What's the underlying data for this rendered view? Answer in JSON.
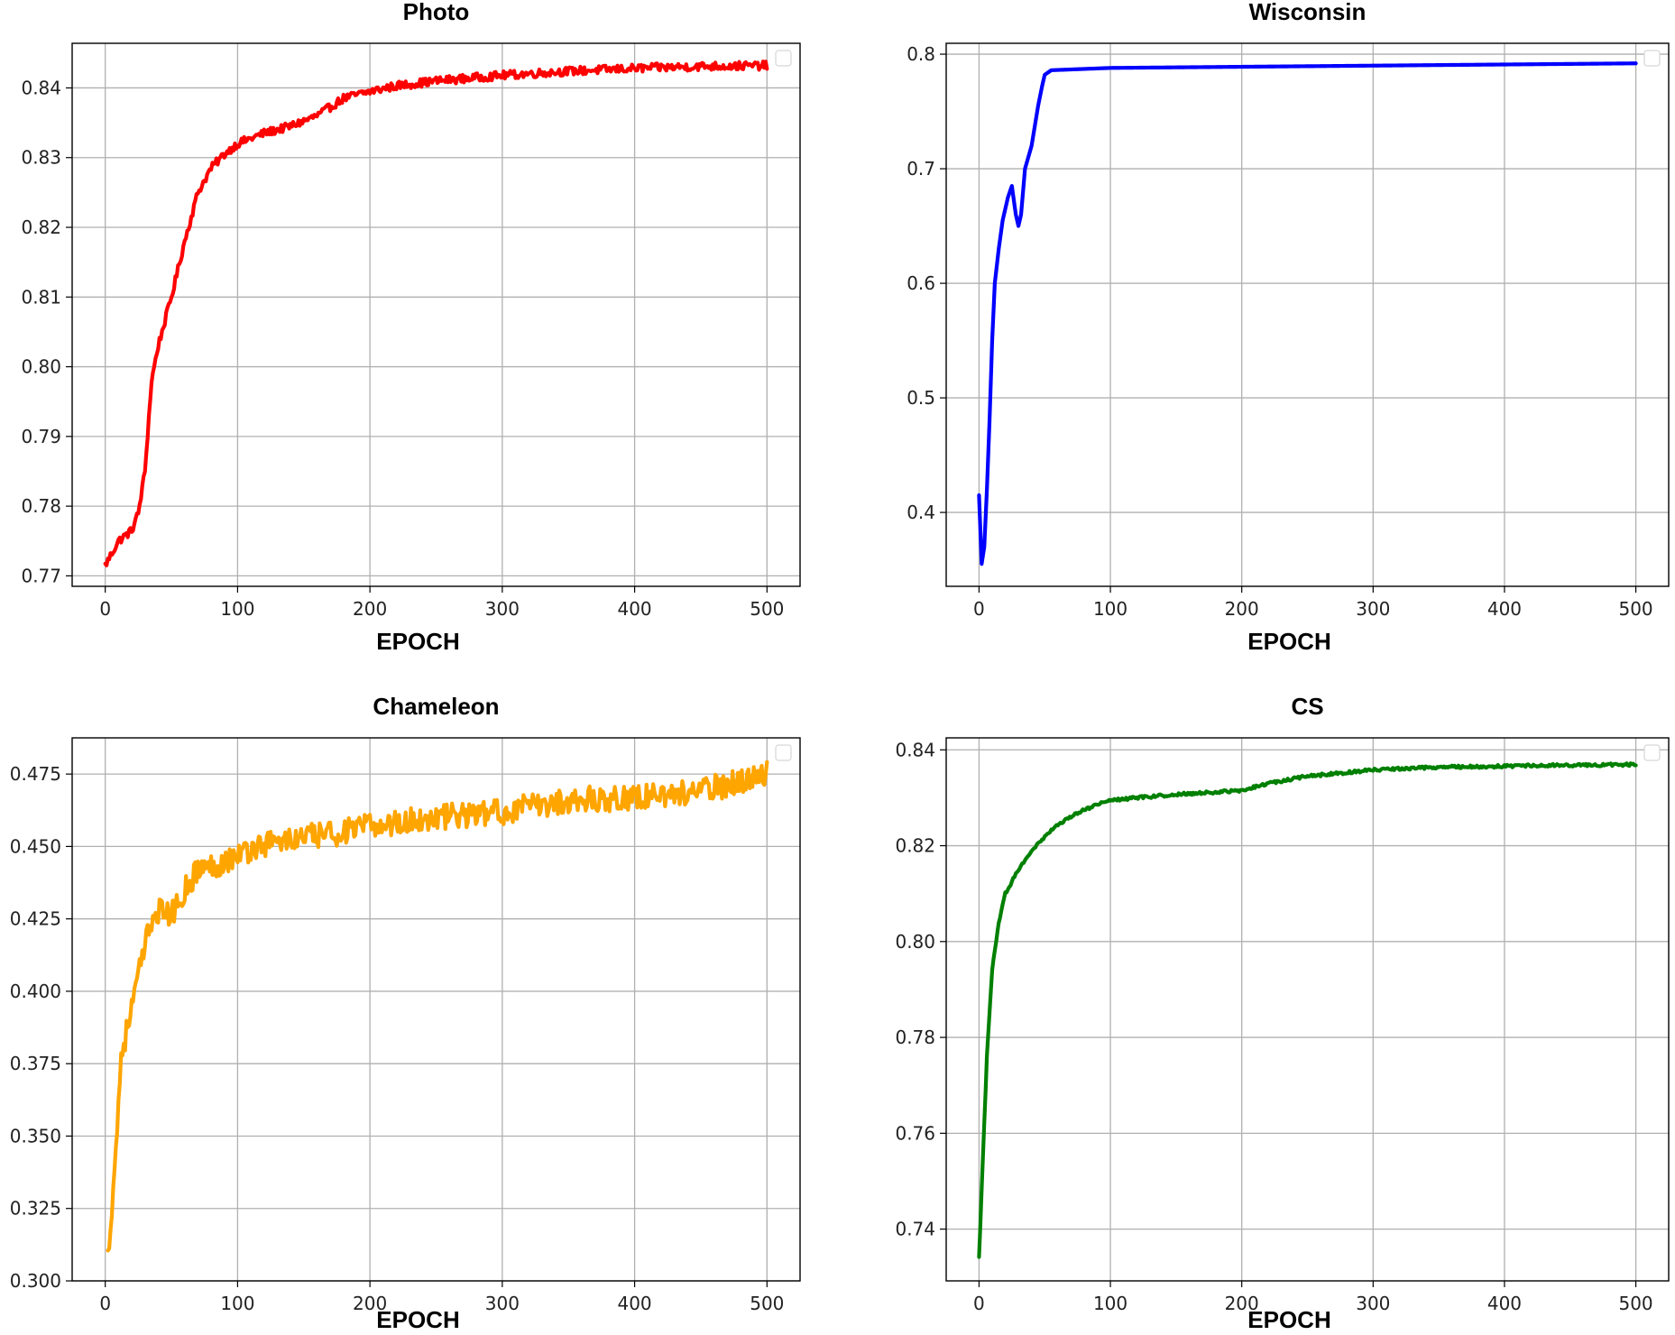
{
  "chart_data": [
    {
      "type": "line",
      "title": "Photo",
      "xlabel": "EPOCH",
      "ylabel": "",
      "xlim": [
        -25,
        525
      ],
      "ylim": [
        0.7685,
        0.8464
      ],
      "xticks": [
        0,
        100,
        200,
        300,
        400,
        500
      ],
      "yticks": [
        0.77,
        0.78,
        0.79,
        0.8,
        0.81,
        0.82,
        0.83,
        0.84
      ],
      "ytick_labels": [
        "0.77",
        "0.78",
        "0.79",
        "0.80",
        "0.81",
        "0.82",
        "0.83",
        "0.84"
      ],
      "grid": true,
      "legend": "top-right",
      "color": "#ff0000",
      "series": [
        {
          "x": [
            0,
            10,
            20,
            25,
            30,
            35,
            40,
            50,
            60,
            70,
            80,
            90,
            100,
            120,
            140,
            160,
            180,
            200,
            220,
            250,
            300,
            350,
            400,
            450,
            500
          ],
          "y": [
            0.7715,
            0.775,
            0.7765,
            0.779,
            0.785,
            0.798,
            0.803,
            0.81,
            0.818,
            0.825,
            0.8285,
            0.8305,
            0.832,
            0.8335,
            0.8345,
            0.836,
            0.8385,
            0.8395,
            0.8403,
            0.841,
            0.8418,
            0.8424,
            0.8428,
            0.8431,
            0.8432
          ],
          "noise": 0.0006
        }
      ]
    },
    {
      "type": "line",
      "title": "Wisconsin",
      "xlabel": "EPOCH",
      "ylabel": "",
      "xlim": [
        -25,
        525
      ],
      "ylim": [
        0.3355,
        0.8095
      ],
      "xticks": [
        0,
        100,
        200,
        300,
        400,
        500
      ],
      "yticks": [
        0.4,
        0.5,
        0.6,
        0.7,
        0.8
      ],
      "ytick_labels": [
        "0.4",
        "0.5",
        "0.6",
        "0.7",
        "0.8"
      ],
      "grid": true,
      "legend": "top-right",
      "color": "#0000ff",
      "series": [
        {
          "x": [
            0,
            2,
            4,
            6,
            8,
            10,
            12,
            15,
            18,
            20,
            22,
            25,
            28,
            30,
            32,
            35,
            40,
            45,
            48,
            50,
            55,
            100,
            200,
            300,
            400,
            500
          ],
          "y": [
            0.415,
            0.355,
            0.37,
            0.42,
            0.48,
            0.55,
            0.6,
            0.63,
            0.655,
            0.665,
            0.675,
            0.685,
            0.66,
            0.65,
            0.66,
            0.7,
            0.72,
            0.755,
            0.772,
            0.782,
            0.786,
            0.788,
            0.789,
            0.79,
            0.791,
            0.792
          ],
          "noise": 0
        }
      ]
    },
    {
      "type": "line",
      "title": "Chameleon",
      "xlabel": "EPOCH",
      "ylabel": "",
      "xlim": [
        -25,
        525
      ],
      "ylim": [
        0.3,
        0.4875
      ],
      "xticks": [
        0,
        100,
        200,
        300,
        400,
        500
      ],
      "yticks": [
        0.3,
        0.325,
        0.35,
        0.375,
        0.4,
        0.425,
        0.45,
        0.475
      ],
      "ytick_labels": [
        "0.300",
        "0.325",
        "0.350",
        "0.375",
        "0.400",
        "0.425",
        "0.450",
        "0.475"
      ],
      "grid": true,
      "legend": "top-right",
      "color": "#ffa500",
      "series": [
        {
          "x": [
            2,
            8,
            12,
            18,
            25,
            30,
            35,
            40,
            50,
            60,
            70,
            80,
            100,
            120,
            150,
            180,
            200,
            250,
            300,
            350,
            400,
            450,
            500
          ],
          "y": [
            0.308,
            0.345,
            0.378,
            0.39,
            0.405,
            0.415,
            0.425,
            0.428,
            0.426,
            0.435,
            0.442,
            0.443,
            0.447,
            0.451,
            0.453,
            0.455,
            0.457,
            0.46,
            0.462,
            0.466,
            0.467,
            0.469,
            0.475
          ],
          "noise": 0.0045
        }
      ]
    },
    {
      "type": "line",
      "title": "CS",
      "xlabel": "EPOCH",
      "ylabel": "",
      "xlim": [
        -25,
        525
      ],
      "ylim": [
        0.7292,
        0.8425
      ],
      "xticks": [
        0,
        100,
        200,
        300,
        400,
        500
      ],
      "yticks": [
        0.74,
        0.76,
        0.78,
        0.8,
        0.82,
        0.84
      ],
      "ytick_labels": [
        "0.74",
        "0.76",
        "0.78",
        "0.80",
        "0.82",
        "0.84"
      ],
      "grid": true,
      "legend": "top-right",
      "color": "#008000",
      "series": [
        {
          "x": [
            0,
            3,
            6,
            10,
            15,
            20,
            30,
            40,
            60,
            80,
            100,
            150,
            200,
            220,
            250,
            300,
            350,
            400,
            450,
            500
          ],
          "y": [
            0.734,
            0.755,
            0.776,
            0.794,
            0.804,
            0.81,
            0.815,
            0.819,
            0.8245,
            0.8275,
            0.8295,
            0.8307,
            0.8315,
            0.833,
            0.8345,
            0.8358,
            0.8364,
            0.8366,
            0.8368,
            0.8369
          ],
          "noise": 0.0003
        }
      ]
    }
  ]
}
